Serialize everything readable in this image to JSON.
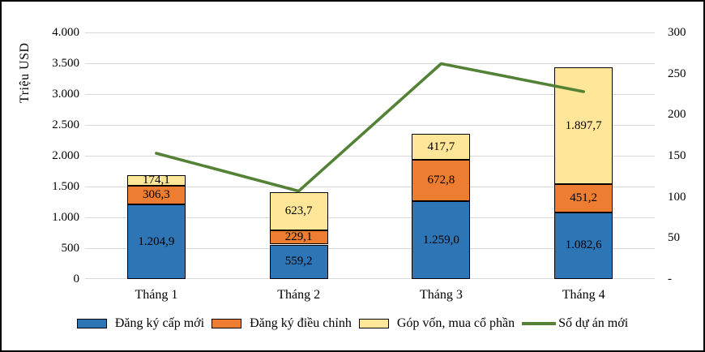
{
  "chart_data": {
    "type": "bar",
    "subtype": "stacked-column-with-line",
    "title": "",
    "categories": [
      "Tháng 1",
      "Tháng 2",
      "Tháng 3",
      "Tháng 4"
    ],
    "bar_series": [
      {
        "key": "dang-ky-cap-moi",
        "name": "Đăng ký cấp mới",
        "color": "#2E75B6",
        "values": [
          1204.9,
          559.2,
          1259.0,
          1082.6
        ],
        "labels": [
          "1.204,9",
          "559,2",
          "1.259,0",
          "1.082,6"
        ]
      },
      {
        "key": "dang-ky-dieu-chinh",
        "name": "Đăng ký điều chỉnh",
        "color": "#ED7D31",
        "values": [
          306.3,
          229.1,
          672.8,
          451.2
        ],
        "labels": [
          "306,3",
          "229,1",
          "672,8",
          "451,2"
        ]
      },
      {
        "key": "gop-von-mua-co-phan",
        "name": "Góp vốn, mua cổ phần",
        "color": "#FFE699",
        "values": [
          174.1,
          623.7,
          417.7,
          1897.7
        ],
        "labels": [
          "174,1",
          "623,7",
          "417,7",
          "1.897,7"
        ]
      }
    ],
    "line_series": {
      "key": "so-du-an-moi",
      "name": "Số dự án mới",
      "color": "#538135",
      "axis": "right",
      "values": [
        153,
        107,
        262,
        228
      ]
    },
    "left_axis": {
      "title": "Triệu USD",
      "min": 0,
      "max": 4000,
      "step": 500,
      "tick_labels": [
        "0",
        "500",
        "1.000",
        "1.500",
        "2.000",
        "2.500",
        "3.000",
        "3.500",
        "4.000"
      ]
    },
    "right_axis": {
      "min": 0,
      "max": 300,
      "step": 50,
      "tick_labels": [
        "-",
        "50",
        "100",
        "150",
        "200",
        "250",
        "300"
      ]
    },
    "grid": true,
    "legend_position": "bottom",
    "colors": {
      "grid": "#D9D9D9",
      "bar_border": "#000000",
      "background": "#FFFFFF",
      "chart_border": "#000000"
    }
  }
}
